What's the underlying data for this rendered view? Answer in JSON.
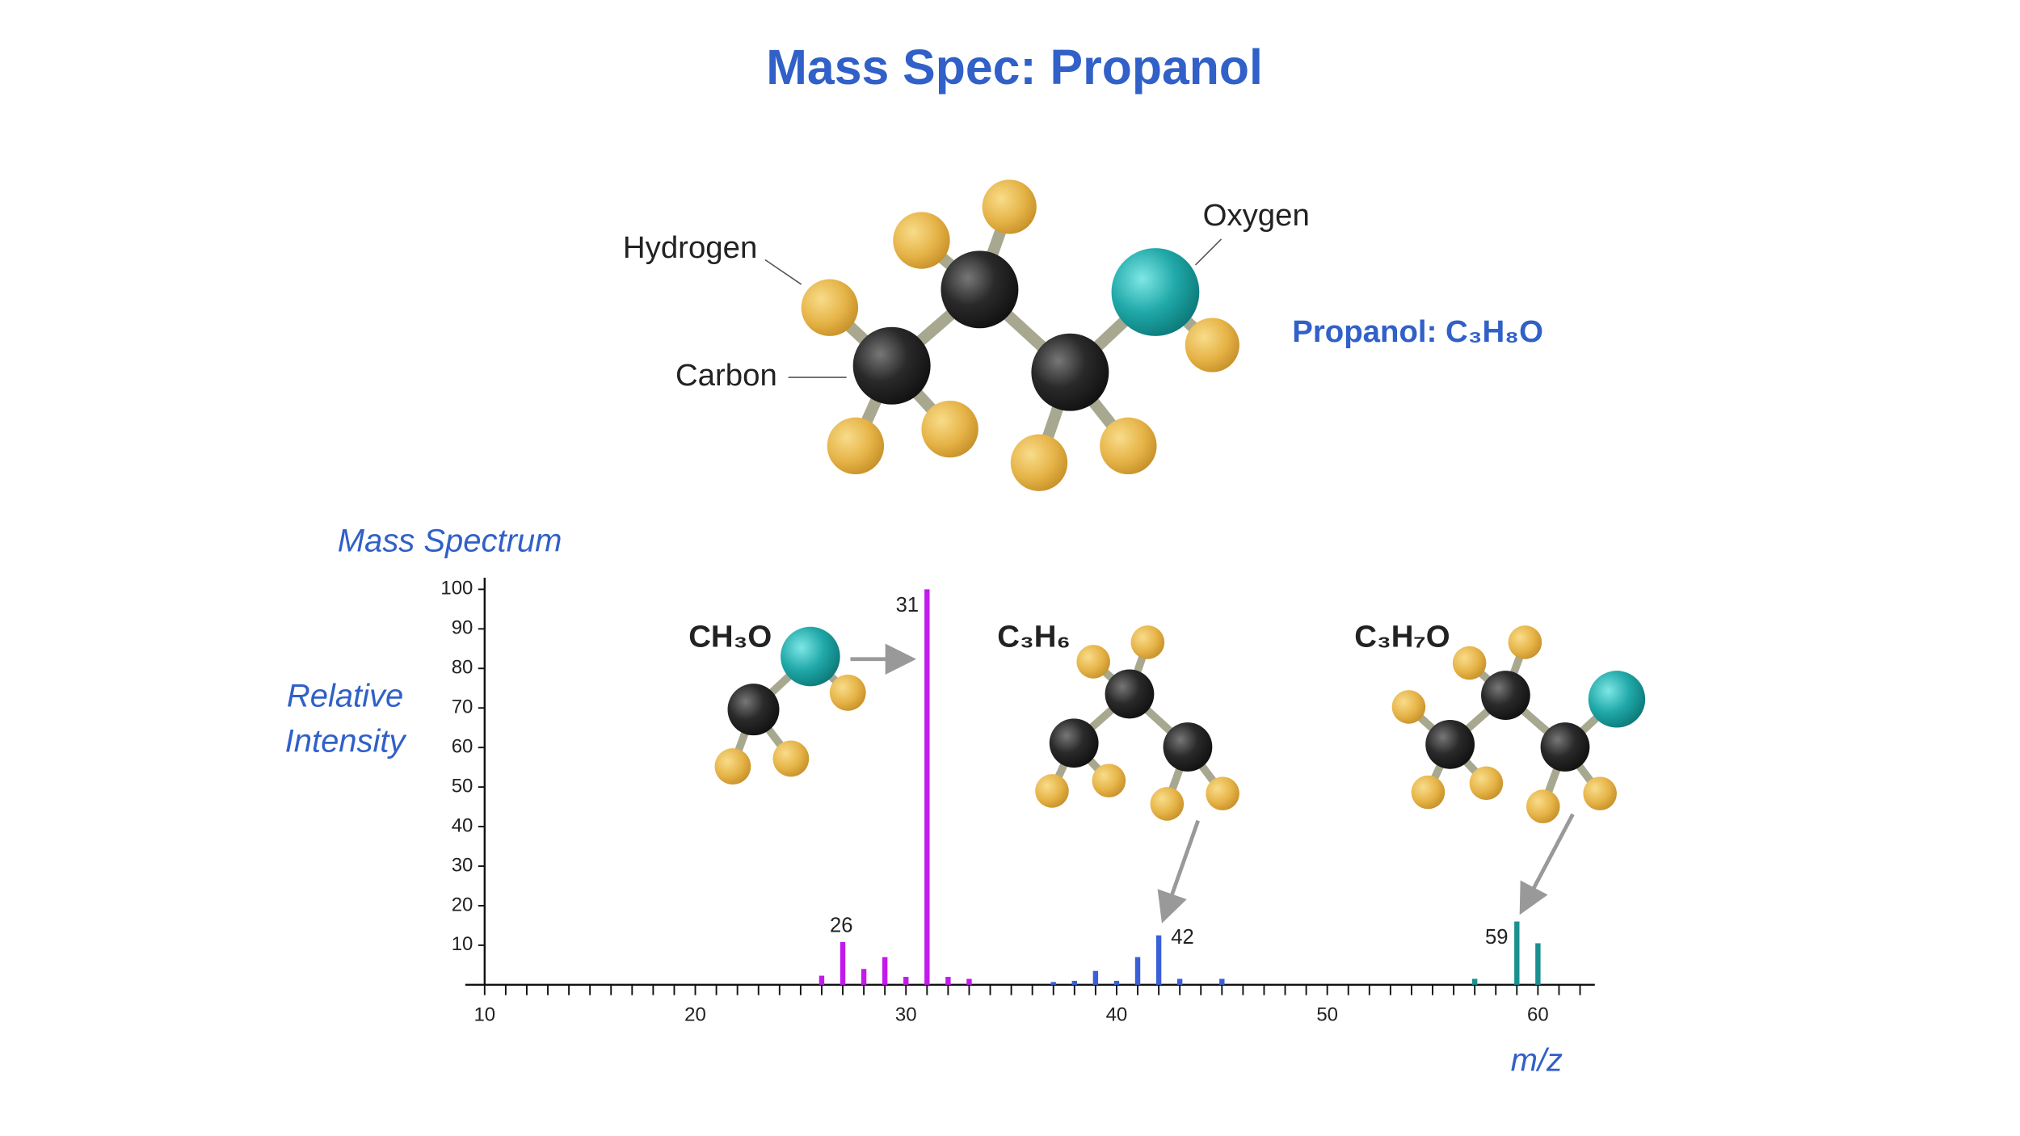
{
  "title": "Mass Spec: Propanol",
  "molecule": {
    "labels": {
      "hydrogen": "Hydrogen",
      "carbon": "Carbon",
      "oxygen": "Oxygen"
    },
    "formula": "Propanol: C₃H₈O"
  },
  "chart_data": {
    "type": "bar",
    "title": "Mass Spectrum",
    "ylabel": [
      "Relative",
      "Intensity"
    ],
    "xlabel": "m/z",
    "xlim": [
      10,
      62.7
    ],
    "ylim": [
      0,
      100
    ],
    "xticks": [
      10,
      20,
      30,
      40,
      50,
      60
    ],
    "xminorticks": [
      11,
      12,
      13,
      14,
      15,
      16,
      17,
      18,
      19,
      21,
      22,
      23,
      24,
      25,
      26,
      27,
      28,
      29,
      31,
      32,
      33,
      34,
      35,
      36,
      37,
      38,
      39,
      41,
      42,
      43,
      44,
      45,
      46,
      47,
      48,
      49,
      51,
      52,
      53,
      54,
      55,
      56,
      57,
      58,
      59,
      61,
      62
    ],
    "yticks": [
      10,
      20,
      30,
      40,
      50,
      60,
      70,
      80,
      90,
      100
    ],
    "series": [
      {
        "color": "#c21aeb",
        "x": [
          26,
          27,
          28,
          29,
          30,
          31,
          32,
          33
        ],
        "values": [
          2.3,
          10.8,
          4,
          7,
          2,
          100,
          2,
          1.5
        ]
      },
      {
        "color": "#3a5fd6",
        "x": [
          37,
          38,
          39,
          40,
          41,
          42,
          43,
          45
        ],
        "values": [
          0.7,
          1,
          3.5,
          1,
          7,
          12.5,
          1.5,
          1.5
        ]
      },
      {
        "color": "#1a9090",
        "x": [
          57,
          59,
          60
        ],
        "values": [
          1.5,
          16,
          10.5
        ]
      }
    ],
    "peak_labels": [
      "31",
      "26",
      "42",
      "59"
    ],
    "fragments": [
      "CH₃O",
      "C₃H₆",
      "C₃H₇O"
    ]
  }
}
